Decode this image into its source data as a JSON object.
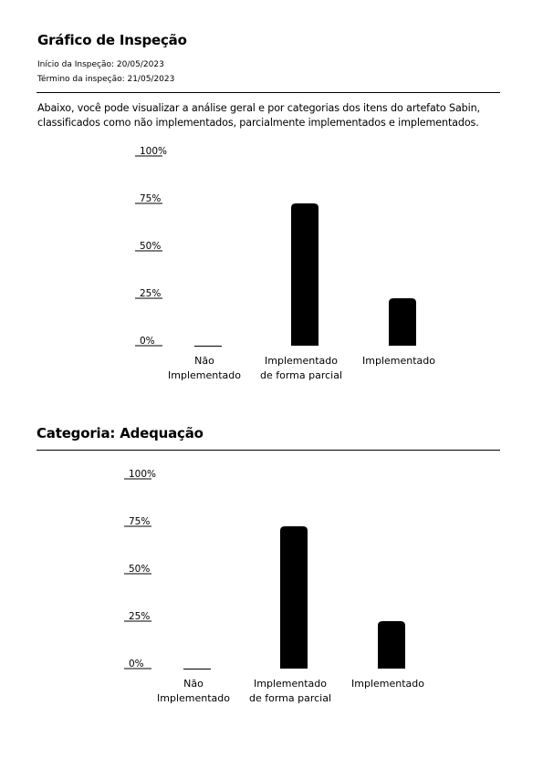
{
  "header": {
    "title": "Gráfico de Inspeção",
    "start": "Início da Inspeção: 20/05/2023",
    "end": "Término da inspeção: 21/05/2023"
  },
  "description": "Abaixo, você pode visualizar a análise geral e por categorias dos itens do artefato Sabin, classificados como não implementados, parcialmente implementados e implementados.",
  "section": {
    "title": "Categoria: Adequação"
  },
  "chart_data": [
    {
      "type": "bar",
      "title": "",
      "xlabel": "",
      "ylabel": "",
      "ylim": [
        0,
        100
      ],
      "grid": false,
      "yticks": [
        "100%",
        "75%",
        "50%",
        "25%",
        "0%"
      ],
      "categories": [
        [
          "Não",
          "Implementado"
        ],
        [
          "Implementado",
          "de forma parcial"
        ],
        [
          "Implementado"
        ]
      ],
      "values": [
        0,
        75,
        25
      ],
      "colors": [
        "#000000"
      ]
    },
    {
      "type": "bar",
      "title": "",
      "xlabel": "",
      "ylabel": "",
      "ylim": [
        0,
        100
      ],
      "grid": false,
      "yticks": [
        "100%",
        "75%",
        "50%",
        "25%",
        "0%"
      ],
      "categories": [
        [
          "Não",
          "Implementado"
        ],
        [
          "Implementado",
          "de forma parcial"
        ],
        [
          "Implementado"
        ]
      ],
      "values": [
        0,
        75,
        25
      ],
      "colors": [
        "#000000"
      ]
    }
  ]
}
